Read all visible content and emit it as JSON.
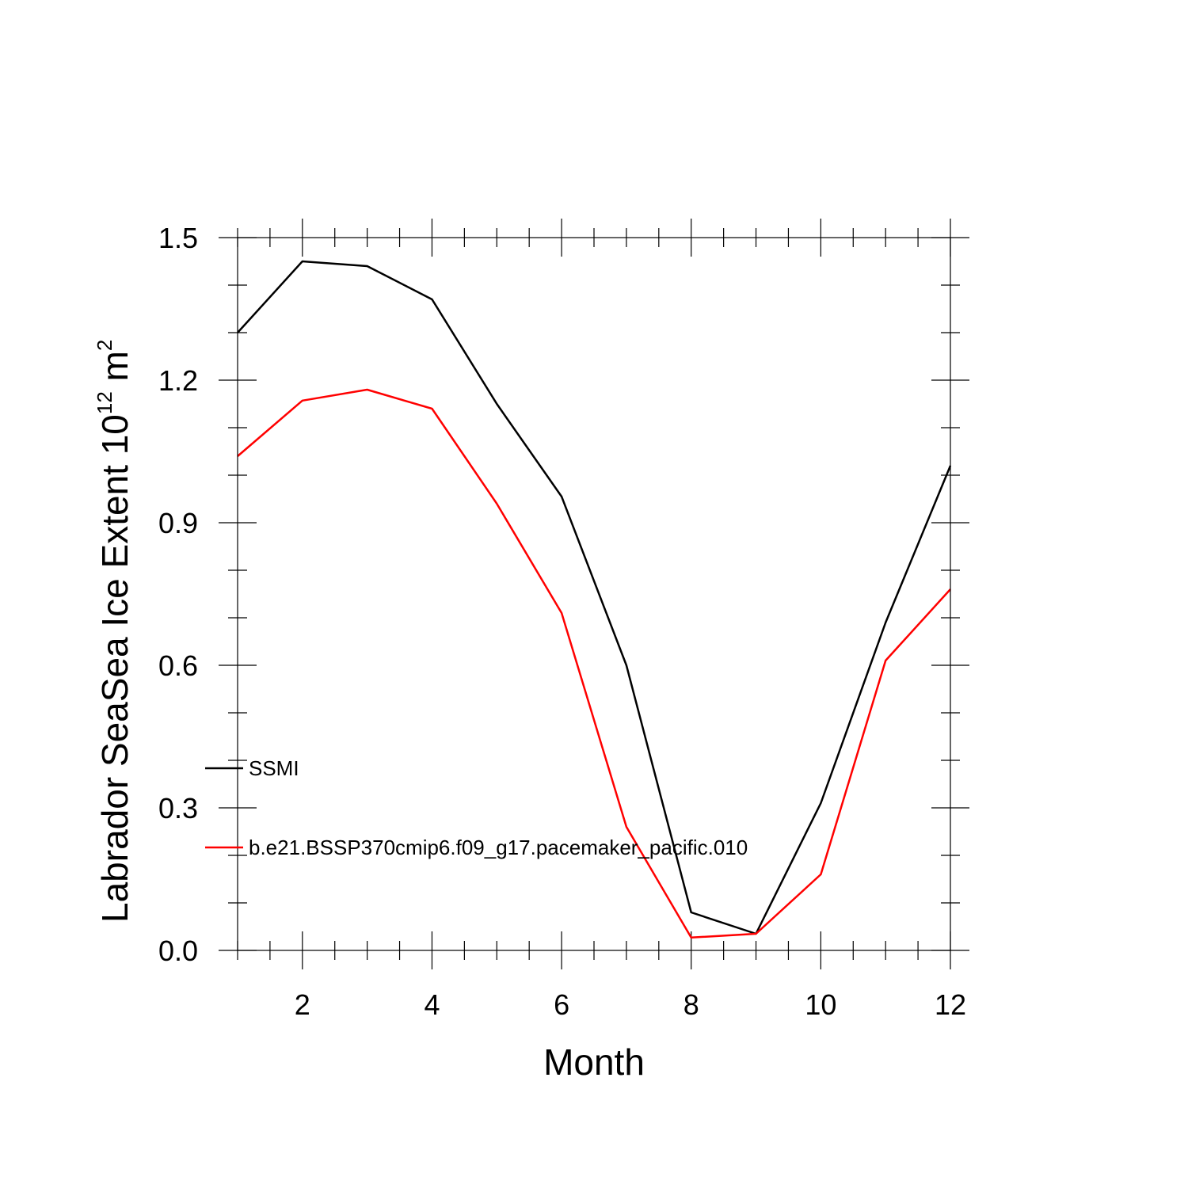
{
  "chart_data": {
    "type": "line",
    "title": "",
    "xlabel": "Month",
    "ylabel_main": "Labrador SeaSea Ice Extent 10",
    "ylabel_exponent": "12",
    "ylabel_unit": " m",
    "ylabel_unit_exponent": "2",
    "xlim": [
      1,
      12
    ],
    "ylim": [
      0,
      1.5
    ],
    "xticks": [
      2,
      4,
      6,
      8,
      10,
      12
    ],
    "xtick_labels": [
      "2",
      "4",
      "6",
      "8",
      "10",
      "12"
    ],
    "yticks": [
      0,
      0.3,
      0.6,
      0.9,
      1.2,
      1.5
    ],
    "ytick_labels": [
      "0.0",
      "0.3",
      "0.6",
      "0.9",
      "1.2",
      "1.5"
    ],
    "grid": false,
    "legend_position": "lower-left inside",
    "x": [
      1,
      2,
      3,
      4,
      5,
      6,
      7,
      8,
      9,
      10,
      11,
      12
    ],
    "series": [
      {
        "name": "SSMI",
        "color": "#000000",
        "values": [
          1.3,
          1.45,
          1.44,
          1.37,
          1.15,
          0.955,
          0.6,
          0.08,
          0.035,
          0.31,
          0.69,
          1.02
        ]
      },
      {
        "name": "b.e21.BSSP370cmip6.f09_g17.pacemaker_pacific.010",
        "color": "#ff0000",
        "values": [
          1.04,
          1.157,
          1.18,
          1.14,
          0.94,
          0.71,
          0.26,
          0.027,
          0.035,
          0.16,
          0.61,
          0.76
        ]
      }
    ]
  }
}
